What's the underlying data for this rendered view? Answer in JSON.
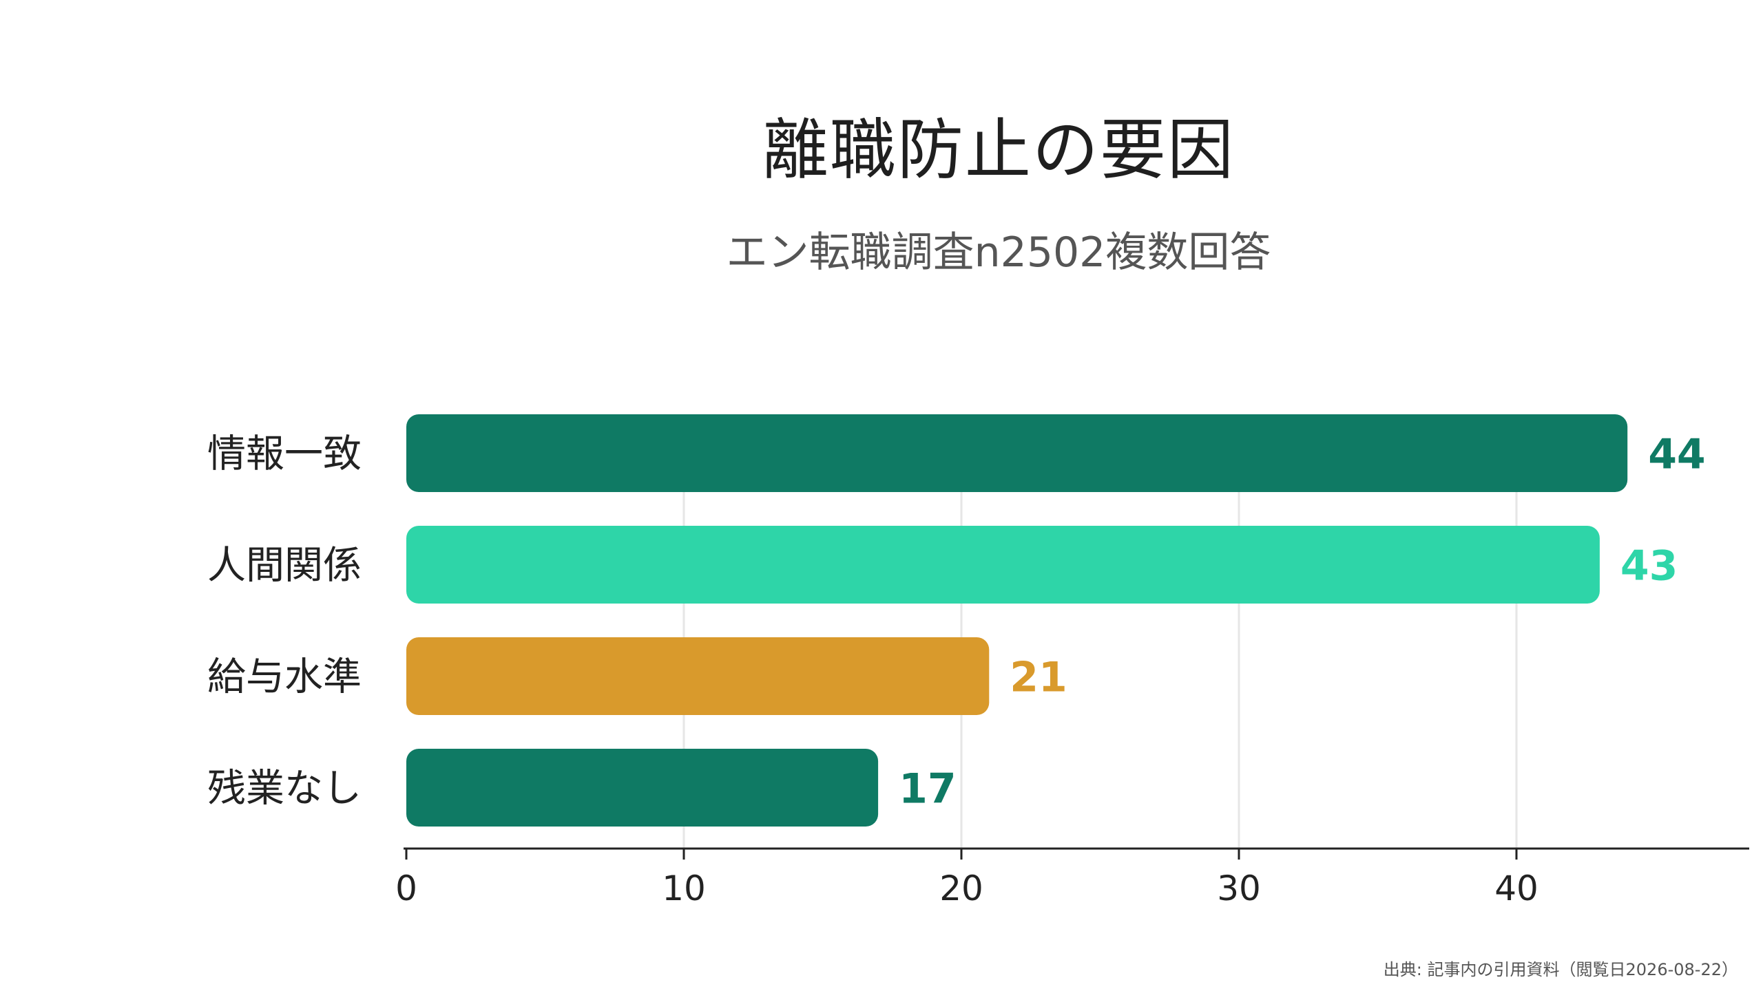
{
  "title": "離職防止の要因",
  "subtitle": "エン転職調査n2502複数回答",
  "source_note": "出典: 記事内の引用資料（閲覧日2026-08-22）",
  "chart_data": {
    "type": "bar",
    "orientation": "horizontal",
    "categories": [
      "情報一致",
      "人間関係",
      "給与水準",
      "残業なし"
    ],
    "values": [
      44,
      43,
      21,
      17
    ],
    "bar_colors": [
      "#0f7a64",
      "#2ed5a8",
      "#d99a2c",
      "#0f7a64"
    ],
    "label_colors": [
      "#0f7a64",
      "#2ed5a8",
      "#d99a2c",
      "#0f7a64"
    ],
    "xlim": [
      0,
      48
    ],
    "xticks": [
      0,
      10,
      20,
      30,
      40
    ],
    "grid": true,
    "legend": "none",
    "title": "離職防止の要因",
    "subtitle": "エン転職調査n2502複数回答",
    "xlabel": "",
    "ylabel": ""
  }
}
